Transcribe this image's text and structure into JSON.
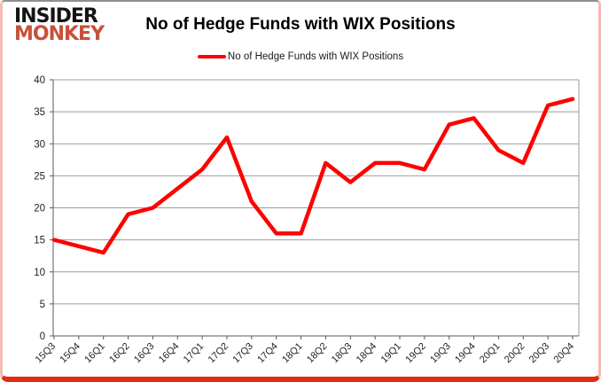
{
  "logo": {
    "line1": "INSIDER",
    "line2": "MONKEY",
    "line1_color": "#141414",
    "line2_color": "#c8503a"
  },
  "title": "No of Hedge Funds with WIX Positions",
  "legend": {
    "label": "No of Hedge Funds with WIX Positions",
    "line_color": "#ff0000"
  },
  "chart_data": {
    "type": "line",
    "title": "No of Hedge Funds with WIX Positions",
    "categories": [
      "15Q3",
      "15Q4",
      "16Q1",
      "16Q2",
      "16Q3",
      "16Q4",
      "17Q1",
      "17Q2",
      "17Q3",
      "17Q4",
      "18Q1",
      "18Q2",
      "18Q3",
      "18Q4",
      "19Q1",
      "19Q2",
      "19Q3",
      "19Q4",
      "20Q1",
      "20Q2",
      "20Q3",
      "20Q4"
    ],
    "series": [
      {
        "name": "No of Hedge Funds with WIX Positions",
        "color": "#ff0000",
        "values": [
          15,
          14,
          13,
          19,
          20,
          23,
          26,
          31,
          21,
          16,
          16,
          27,
          24,
          27,
          27,
          26,
          33,
          34,
          29,
          27,
          36,
          37
        ]
      }
    ],
    "xlabel": "",
    "ylabel": "",
    "ylim": [
      0,
      40
    ],
    "ytick_step": 5,
    "grid": true,
    "legend_position": "top"
  },
  "colors": {
    "gridline": "#9b9b9b",
    "axis": "#595959",
    "tick_label": "#1f1f1f",
    "plot_border": "#9b9b9b"
  }
}
